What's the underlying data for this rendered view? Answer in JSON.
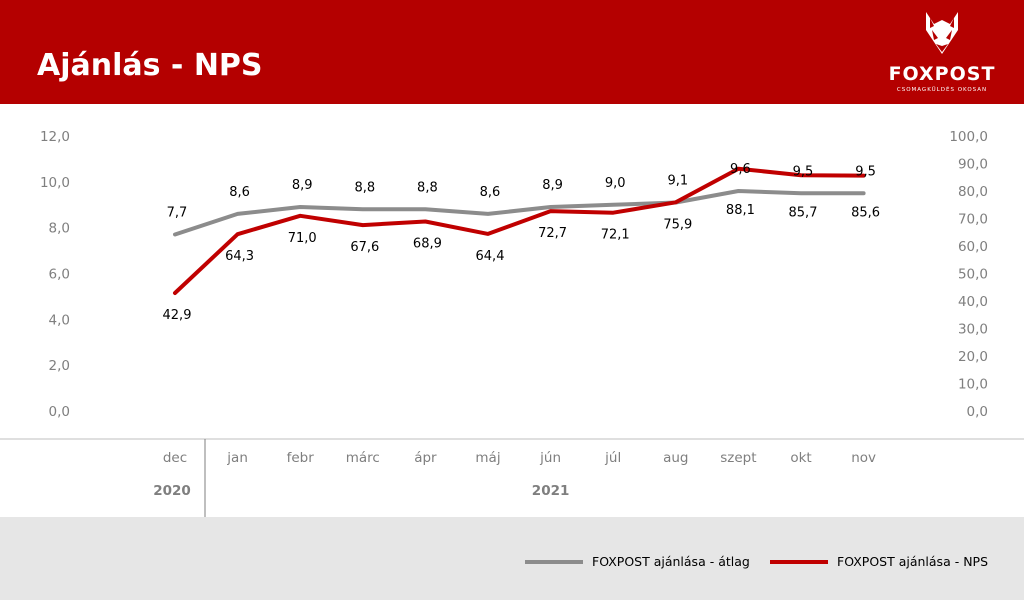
{
  "header": {
    "title": "Ajánlás - NPS"
  },
  "logo": {
    "name": "FOXPOST",
    "tagline": "CSOMAGKÜLDÉS OKOSAN",
    "icon": "fox-head-icon"
  },
  "colors": {
    "brand_red": "#b40000",
    "series_red": "#c00000",
    "series_gray": "#8c8c8c",
    "footer_bg": "#e6e6e6"
  },
  "chart_data": {
    "type": "line",
    "categories": [
      "dec",
      "jan",
      "febr",
      "márc",
      "ápr",
      "máj",
      "jún",
      "júl",
      "aug",
      "szept",
      "okt",
      "nov"
    ],
    "year_groups": [
      {
        "label": "2020",
        "categories": [
          "dec"
        ]
      },
      {
        "label": "2021",
        "categories": [
          "jan",
          "febr",
          "márc",
          "ápr",
          "máj",
          "jún",
          "júl",
          "aug",
          "szept",
          "okt",
          "nov"
        ]
      }
    ],
    "y_left": {
      "min": 0,
      "max": 12,
      "ticks": [
        "0,0",
        "2,0",
        "4,0",
        "6,0",
        "8,0",
        "10,0",
        "12,0"
      ]
    },
    "y_right": {
      "min": 0,
      "max": 100,
      "ticks": [
        "0,0",
        "10,0",
        "20,0",
        "30,0",
        "40,0",
        "50,0",
        "60,0",
        "70,0",
        "80,0",
        "90,0",
        "100,0"
      ]
    },
    "series": [
      {
        "name": "FOXPOST ajánlása - átlag",
        "axis": "left",
        "color": "#8c8c8c",
        "values": [
          7.7,
          8.6,
          8.9,
          8.8,
          8.8,
          8.6,
          8.9,
          9.0,
          9.1,
          9.6,
          9.5,
          9.5
        ],
        "labels": [
          "7,7",
          "8,6",
          "8,9",
          "8,8",
          "8,8",
          "8,6",
          "8,9",
          "9,0",
          "9,1",
          "9,6",
          "9,5",
          "9,5"
        ]
      },
      {
        "name": "FOXPOST ajánlása - NPS",
        "axis": "right",
        "color": "#c00000",
        "values": [
          42.9,
          64.3,
          71.0,
          67.6,
          68.9,
          64.4,
          72.7,
          72.1,
          75.9,
          88.1,
          85.7,
          85.6
        ],
        "labels": [
          "42,9",
          "64,3",
          "71,0",
          "67,6",
          "68,9",
          "64,4",
          "72,7",
          "72,1",
          "75,9",
          "88,1",
          "85,7",
          "85,6"
        ]
      }
    ]
  },
  "legend": [
    {
      "label": "FOXPOST ajánlása - átlag",
      "color": "#8c8c8c"
    },
    {
      "label": "FOXPOST ajánlása - NPS",
      "color": "#c00000"
    }
  ]
}
